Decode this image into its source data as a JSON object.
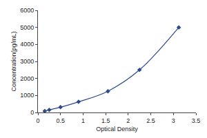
{
  "chart_data": {
    "type": "scatter",
    "x": [
      0.15,
      0.25,
      0.5,
      0.9,
      1.55,
      2.25,
      3.12
    ],
    "values": [
      78,
      156,
      312,
      625,
      1250,
      2500,
      5000
    ],
    "x_label": "Optical Density",
    "y_label": "Concentration(pg/mL)",
    "xlim": [
      0,
      3.5
    ],
    "xticks": [
      0,
      0.5,
      1,
      1.5,
      2,
      2.5,
      3,
      3.5
    ],
    "ylim": [
      0,
      6000
    ],
    "yticks": [
      0,
      1000,
      2000,
      3000,
      4000,
      5000,
      6000
    ],
    "color": "#2b4a8b",
    "marker": "diamond",
    "line_style": "solid",
    "grid": false
  }
}
